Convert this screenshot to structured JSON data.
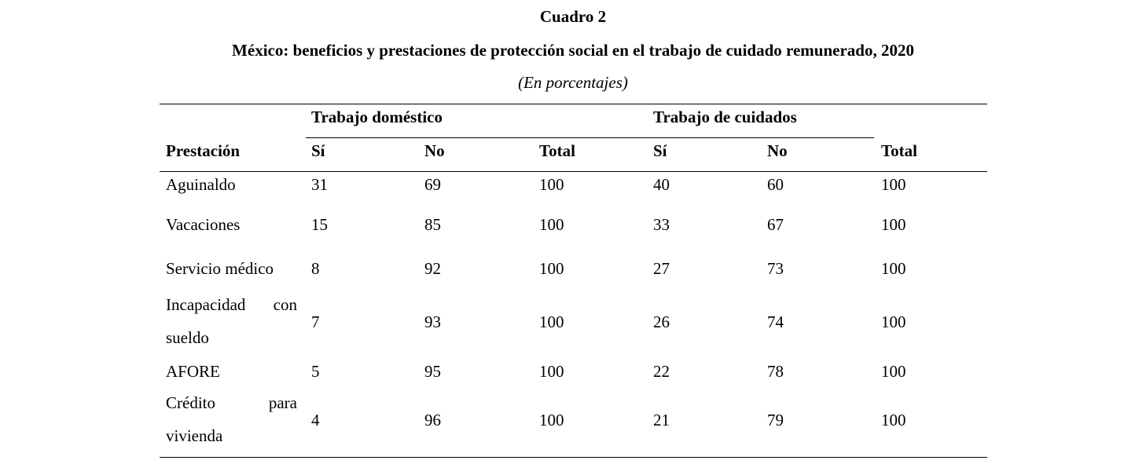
{
  "caption": {
    "number": "Cuadro 2",
    "title": "México: beneficios y prestaciones de protección social en el trabajo de cuidado remunerado, 2020",
    "subtitle": "(En porcentajes)"
  },
  "table": {
    "row_header": "Prestación",
    "groups": [
      "Trabajo doméstico",
      "Trabajo de cuidados"
    ],
    "columns": [
      "Sí",
      "No",
      "Total",
      "Sí",
      "No",
      "Total"
    ],
    "rows": [
      {
        "label": "Aguinaldo",
        "values": [
          "31",
          "69",
          "100",
          "40",
          "60",
          "100"
        ]
      },
      {
        "label": "Vacaciones",
        "values": [
          "15",
          "85",
          "100",
          "33",
          "67",
          "100"
        ]
      },
      {
        "label": "Servicio médico",
        "values": [
          "8",
          "92",
          "100",
          "27",
          "73",
          "100"
        ]
      },
      {
        "label": "Incapacidad con sueldo",
        "values": [
          "7",
          "93",
          "100",
          "26",
          "74",
          "100"
        ]
      },
      {
        "label": "AFORE",
        "values": [
          "5",
          "95",
          "100",
          "22",
          "78",
          "100"
        ]
      },
      {
        "label": "Crédito para vivienda",
        "values": [
          "4",
          "96",
          "100",
          "21",
          "79",
          "100"
        ]
      }
    ]
  }
}
